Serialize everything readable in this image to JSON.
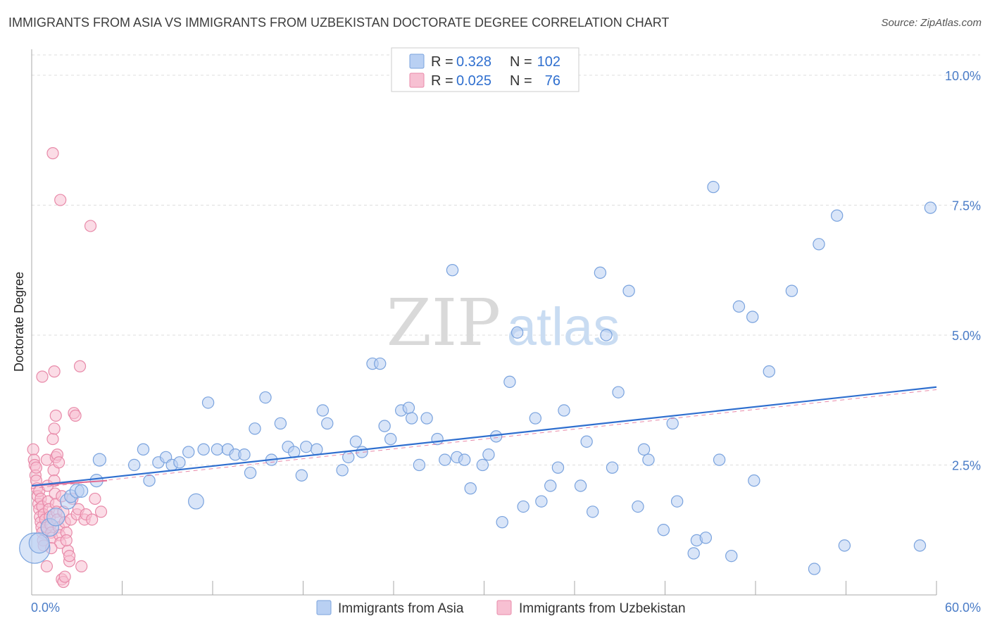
{
  "title": "IMMIGRANTS FROM ASIA VS IMMIGRANTS FROM UZBEKISTAN DOCTORATE DEGREE CORRELATION CHART",
  "source": "Source: ZipAtlas.com",
  "watermark": {
    "zip": "ZIP",
    "atlas": "atlas"
  },
  "colors": {
    "asia_fill": "#b9d0f3",
    "asia_stroke": "#7aa3de",
    "asia_line": "#2f6fcf",
    "uzb_fill": "#f7c0d2",
    "uzb_stroke": "#e88aa9",
    "uzb_line": "#e26b93",
    "axis_text": "#4a7cc7",
    "grid": "#dddddd"
  },
  "stats_legend": [
    {
      "r_label": "R =",
      "r_value": "0.328",
      "n_label": "N =",
      "n_value": "102"
    },
    {
      "r_label": "R =",
      "r_value": "0.025",
      "n_label": "N =",
      "n_value": "76"
    }
  ],
  "chart_data": {
    "type": "scatter",
    "title": "IMMIGRANTS FROM ASIA VS IMMIGRANTS FROM UZBEKISTAN DOCTORATE DEGREE CORRELATION CHART",
    "xlabel": "",
    "ylabel": "Doctorate Degree",
    "xlim": [
      0,
      60
    ],
    "ylim": [
      0,
      10.5
    ],
    "x_tick_labels": [
      "0.0%",
      "60.0%"
    ],
    "y_ticks": [
      2.5,
      5.0,
      7.5,
      10.0
    ],
    "y_tick_labels": [
      "2.5%",
      "5.0%",
      "7.5%",
      "10.0%"
    ],
    "grid": true,
    "legend_position": "bottom",
    "series": [
      {
        "name": "Immigrants from Asia",
        "trend": {
          "x": [
            0,
            60
          ],
          "y": [
            2.1,
            4.0
          ]
        },
        "points": [
          [
            0.2,
            0.9,
            2.4
          ],
          [
            0.5,
            1.0,
            1.6
          ],
          [
            1.2,
            1.3,
            1.4
          ],
          [
            1.6,
            1.5,
            1.4
          ],
          [
            2.4,
            1.8,
            1.2
          ],
          [
            2.6,
            1.9,
            1.0
          ],
          [
            3.0,
            2.0,
            1.1
          ],
          [
            3.3,
            2.0,
            1.0
          ],
          [
            4.3,
            2.2,
            1.0
          ],
          [
            4.5,
            2.6,
            1.0
          ],
          [
            6.8,
            2.5,
            0.9
          ],
          [
            7.4,
            2.8,
            0.9
          ],
          [
            7.8,
            2.2,
            0.9
          ],
          [
            8.4,
            2.55,
            0.9
          ],
          [
            8.9,
            2.65,
            0.9
          ],
          [
            9.3,
            2.5,
            0.9
          ],
          [
            9.8,
            2.55,
            0.9
          ],
          [
            10.4,
            2.75,
            0.9
          ],
          [
            10.9,
            1.8,
            1.2
          ],
          [
            11.4,
            2.8,
            0.9
          ],
          [
            11.7,
            3.7,
            0.9
          ],
          [
            12.3,
            2.8,
            0.9
          ],
          [
            13.0,
            2.8,
            0.9
          ],
          [
            13.5,
            2.7,
            0.9
          ],
          [
            14.1,
            2.7,
            0.9
          ],
          [
            14.5,
            2.35,
            0.9
          ],
          [
            14.8,
            3.2,
            0.9
          ],
          [
            15.5,
            3.8,
            0.9
          ],
          [
            15.9,
            2.6,
            0.9
          ],
          [
            16.5,
            3.3,
            0.9
          ],
          [
            17.0,
            2.85,
            0.9
          ],
          [
            17.4,
            2.75,
            0.9
          ],
          [
            17.9,
            2.3,
            0.9
          ],
          [
            18.2,
            2.85,
            0.9
          ],
          [
            18.9,
            2.8,
            0.9
          ],
          [
            19.3,
            3.55,
            0.9
          ],
          [
            19.6,
            3.3,
            0.9
          ],
          [
            20.6,
            2.4,
            0.9
          ],
          [
            21.0,
            2.65,
            0.9
          ],
          [
            21.5,
            2.95,
            0.9
          ],
          [
            21.9,
            2.75,
            0.9
          ],
          [
            22.6,
            4.45,
            0.9
          ],
          [
            23.1,
            4.45,
            0.9
          ],
          [
            23.4,
            3.25,
            0.9
          ],
          [
            23.8,
            3.0,
            0.9
          ],
          [
            24.5,
            3.55,
            0.9
          ],
          [
            25.0,
            3.6,
            0.9
          ],
          [
            25.2,
            3.4,
            0.9
          ],
          [
            25.7,
            2.5,
            0.9
          ],
          [
            26.2,
            3.4,
            0.9
          ],
          [
            26.9,
            3.0,
            0.9
          ],
          [
            27.4,
            2.6,
            0.9
          ],
          [
            27.9,
            6.25,
            0.9
          ],
          [
            28.2,
            2.65,
            0.9
          ],
          [
            28.7,
            2.6,
            0.9
          ],
          [
            29.1,
            2.05,
            0.9
          ],
          [
            29.9,
            2.5,
            0.9
          ],
          [
            30.3,
            2.7,
            0.9
          ],
          [
            30.8,
            3.05,
            0.9
          ],
          [
            31.2,
            1.4,
            0.9
          ],
          [
            31.7,
            4.1,
            0.9
          ],
          [
            32.2,
            5.05,
            0.9
          ],
          [
            32.6,
            1.7,
            0.9
          ],
          [
            33.4,
            3.4,
            0.9
          ],
          [
            33.8,
            1.8,
            0.9
          ],
          [
            34.4,
            2.1,
            0.9
          ],
          [
            34.9,
            2.45,
            0.9
          ],
          [
            35.3,
            3.55,
            0.9
          ],
          [
            36.4,
            2.1,
            0.9
          ],
          [
            36.8,
            2.95,
            0.9
          ],
          [
            37.2,
            1.6,
            0.9
          ],
          [
            37.7,
            6.2,
            0.9
          ],
          [
            38.1,
            5.0,
            0.9
          ],
          [
            38.5,
            2.45,
            0.9
          ],
          [
            38.9,
            3.9,
            0.9
          ],
          [
            39.6,
            5.85,
            0.9
          ],
          [
            40.2,
            1.7,
            0.9
          ],
          [
            40.6,
            2.8,
            0.9
          ],
          [
            40.9,
            2.6,
            0.9
          ],
          [
            41.9,
            1.25,
            0.9
          ],
          [
            42.5,
            3.3,
            0.9
          ],
          [
            42.8,
            1.8,
            0.9
          ],
          [
            43.9,
            0.8,
            0.9
          ],
          [
            44.1,
            1.05,
            0.9
          ],
          [
            44.7,
            1.1,
            0.9
          ],
          [
            45.2,
            7.85,
            0.9
          ],
          [
            45.6,
            2.6,
            0.9
          ],
          [
            46.4,
            0.75,
            0.9
          ],
          [
            46.9,
            5.55,
            0.9
          ],
          [
            47.8,
            5.35,
            0.9
          ],
          [
            47.9,
            2.2,
            0.9
          ],
          [
            48.9,
            4.3,
            0.9
          ],
          [
            50.4,
            5.85,
            0.9
          ],
          [
            51.9,
            0.5,
            0.9
          ],
          [
            52.2,
            6.75,
            0.9
          ],
          [
            53.4,
            7.3,
            0.9
          ],
          [
            53.9,
            0.95,
            0.9
          ],
          [
            58.9,
            0.95,
            0.9
          ],
          [
            59.6,
            7.45,
            0.9
          ]
        ]
      },
      {
        "name": "Immigrants from Uzbekistan",
        "trend": {
          "x": [
            0,
            5
          ],
          "y": [
            2.1,
            2.2
          ]
        },
        "dashed_trend": {
          "x": [
            0,
            60
          ],
          "y": [
            2.05,
            3.95
          ]
        },
        "points": [
          [
            0.1,
            2.8
          ],
          [
            0.15,
            2.6
          ],
          [
            0.2,
            2.5
          ],
          [
            0.25,
            2.3
          ],
          [
            0.3,
            2.2
          ],
          [
            0.35,
            2.05
          ],
          [
            0.4,
            1.9
          ],
          [
            0.45,
            1.75
          ],
          [
            0.5,
            1.65
          ],
          [
            0.55,
            1.5
          ],
          [
            0.6,
            1.4
          ],
          [
            0.65,
            1.3
          ],
          [
            0.7,
            1.2
          ],
          [
            0.75,
            1.05
          ],
          [
            0.8,
            0.95
          ],
          [
            0.3,
            2.45
          ],
          [
            0.5,
            2.0
          ],
          [
            0.6,
            1.85
          ],
          [
            0.7,
            1.7
          ],
          [
            0.8,
            1.55
          ],
          [
            0.9,
            1.45
          ],
          [
            1.0,
            1.3
          ],
          [
            1.0,
            2.6
          ],
          [
            1.05,
            2.1
          ],
          [
            1.1,
            1.8
          ],
          [
            1.15,
            1.65
          ],
          [
            1.2,
            1.5
          ],
          [
            1.25,
            1.35
          ],
          [
            1.3,
            1.2
          ],
          [
            1.35,
            1.1
          ],
          [
            1.4,
            3.0
          ],
          [
            1.45,
            2.4
          ],
          [
            1.5,
            2.2
          ],
          [
            1.55,
            1.95
          ],
          [
            1.6,
            1.75
          ],
          [
            1.65,
            1.6
          ],
          [
            1.7,
            1.45
          ],
          [
            1.8,
            1.3
          ],
          [
            1.85,
            1.15
          ],
          [
            1.9,
            1.0
          ],
          [
            1.0,
            0.55
          ],
          [
            1.3,
            0.9
          ],
          [
            1.5,
            3.2
          ],
          [
            1.6,
            2.65
          ],
          [
            1.7,
            2.7
          ],
          [
            1.8,
            2.55
          ],
          [
            1.4,
            8.5
          ],
          [
            0.7,
            4.2
          ],
          [
            1.5,
            4.3
          ],
          [
            1.6,
            3.45
          ],
          [
            1.9,
            7.6
          ],
          [
            2.0,
            1.9
          ],
          [
            2.1,
            1.6
          ],
          [
            2.2,
            1.4
          ],
          [
            2.3,
            1.2
          ],
          [
            2.4,
            0.85
          ],
          [
            2.5,
            0.65
          ],
          [
            2.0,
            0.3
          ],
          [
            2.1,
            0.25
          ],
          [
            2.2,
            0.35
          ],
          [
            2.3,
            1.05
          ],
          [
            2.5,
            0.75
          ],
          [
            2.6,
            1.45
          ],
          [
            2.7,
            1.85
          ],
          [
            2.8,
            3.5
          ],
          [
            2.9,
            3.45
          ],
          [
            3.0,
            1.55
          ],
          [
            3.1,
            1.65
          ],
          [
            3.2,
            4.4
          ],
          [
            3.3,
            0.55
          ],
          [
            3.5,
            1.45
          ],
          [
            3.6,
            1.55
          ],
          [
            3.9,
            7.1
          ],
          [
            4.0,
            1.45
          ],
          [
            4.2,
            1.85
          ],
          [
            4.6,
            1.6
          ]
        ]
      }
    ]
  },
  "bottom_legend": [
    "Immigrants from Asia",
    "Immigrants from Uzbekistan"
  ]
}
